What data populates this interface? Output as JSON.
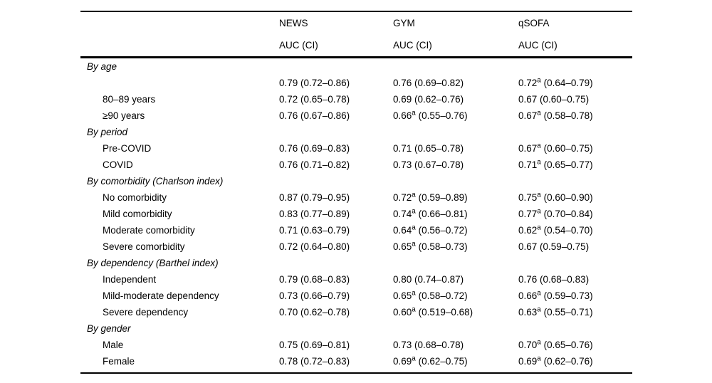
{
  "table": {
    "columns": [
      {
        "name": "NEWS",
        "sub": "AUC (CI)"
      },
      {
        "name": "GYM",
        "sub": "AUC (CI)"
      },
      {
        "name": "qSOFA",
        "sub": "AUC (CI)"
      }
    ],
    "footnote_marker": "a",
    "sections": [
      {
        "title": "By age",
        "rows": [
          {
            "label": "",
            "values": [
              "0.79 (0.72–0.86)",
              "0.76 (0.69–0.82)",
              "0.72^a (0.64–0.79)"
            ]
          },
          {
            "label": "80–89 years",
            "values": [
              "0.72 (0.65–0.78)",
              "0.69 (0.62–0.76)",
              "0.67 (0.60–0.75)"
            ]
          },
          {
            "label": "≥90 years",
            "values": [
              "0.76 (0.67–0.86)",
              "0.66^a (0.55–0.76)",
              "0.67^a (0.58–0.78)"
            ]
          }
        ]
      },
      {
        "title": "By period",
        "rows": [
          {
            "label": "Pre-COVID",
            "values": [
              "0.76 (0.69–0.83)",
              "0.71 (0.65–0.78)",
              "0.67^a (0.60–0.75)"
            ]
          },
          {
            "label": "COVID",
            "values": [
              "0.76 (0.71–0.82)",
              "0.73 (0.67–0.78)",
              "0.71^a (0.65–0.77)"
            ]
          }
        ]
      },
      {
        "title": "By comorbidity (Charlson index)",
        "rows": [
          {
            "label": "No comorbidity",
            "values": [
              "0.87 (0.79–0.95)",
              "0.72^a (0.59–0.89)",
              "0.75^a (0.60–0.90)"
            ]
          },
          {
            "label": "Mild comorbidity",
            "values": [
              "0.83 (0.77–0.89)",
              "0.74^a (0.66–0.81)",
              "0.77^a (0.70–0.84)"
            ]
          },
          {
            "label": "Moderate comorbidity",
            "values": [
              "0.71 (0.63–0.79)",
              "0.64^a (0.56–0.72)",
              "0.62^a (0.54–0.70)"
            ]
          },
          {
            "label": "Severe comorbidity",
            "values": [
              "0.72 (0.64–0.80)",
              "0.65^a (0.58–0.73)",
              "0.67 (0.59–0.75)"
            ]
          }
        ]
      },
      {
        "title": "By dependency (Barthel index)",
        "rows": [
          {
            "label": "Independent",
            "values": [
              "0.79 (0.68–0.83)",
              "0.80 (0.74–0.87)",
              "0.76 (0.68–0.83)"
            ]
          },
          {
            "label": "Mild-moderate dependency",
            "values": [
              "0.73 (0.66–0.79)",
              "0.65^a (0.58–0.72)",
              "0.66^a (0.59–0.73)"
            ]
          },
          {
            "label": "Severe dependency",
            "values": [
              "0.70 (0.62–0.78)",
              "0.60^a (0.519–0.68)",
              "0.63^a (0.55–0.71)"
            ]
          }
        ]
      },
      {
        "title": "By gender",
        "rows": [
          {
            "label": "Male",
            "values": [
              "0.75 (0.69–0.81)",
              "0.73 (0.68–0.78)",
              "0.70^a (0.65–0.76)"
            ]
          },
          {
            "label": "Female",
            "values": [
              "0.78 (0.72–0.83)",
              "0.69^a (0.62–0.75)",
              "0.69^a (0.62–0.76)"
            ]
          }
        ]
      }
    ]
  }
}
